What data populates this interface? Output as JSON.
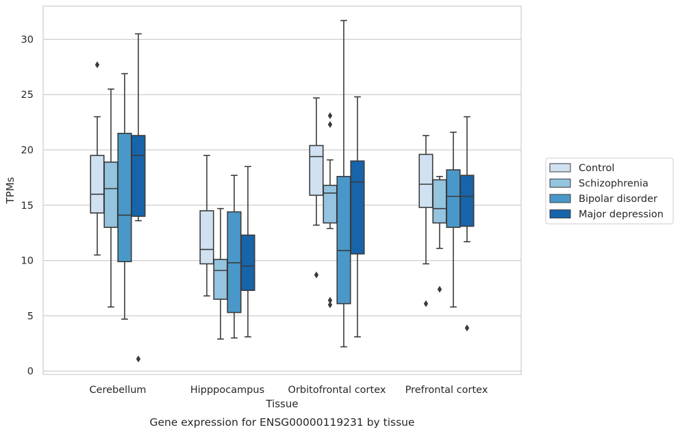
{
  "chart_data": {
    "type": "box",
    "caption": "Gene expression for ENSG00000119231 by tissue",
    "xlabel": "Tissue",
    "ylabel": "TPMs",
    "ylim": [
      -0.3,
      33
    ],
    "yticks": [
      0,
      5,
      10,
      15,
      20,
      25,
      30
    ],
    "grid": "horizontal",
    "legend_position": "right",
    "categories": [
      "Cerebellum",
      "Hipppocampus",
      "Orbitofrontal cortex",
      "Prefrontal cortex"
    ],
    "series": [
      {
        "name": "Control",
        "color": "#d0e1f2",
        "boxes": [
          {
            "whisker_low": 10.5,
            "q1": 14.3,
            "median": 16.0,
            "q3": 19.5,
            "whisker_high": 23.0,
            "outliers": [
              27.7
            ]
          },
          {
            "whisker_low": 6.8,
            "q1": 9.7,
            "median": 11.0,
            "q3": 14.5,
            "whisker_high": 19.5,
            "outliers": []
          },
          {
            "whisker_low": 13.2,
            "q1": 15.9,
            "median": 19.4,
            "q3": 20.4,
            "whisker_high": 24.7,
            "outliers": [
              8.7
            ]
          },
          {
            "whisker_low": 9.7,
            "q1": 14.8,
            "median": 16.9,
            "q3": 19.6,
            "whisker_high": 21.3,
            "outliers": [
              6.1
            ]
          }
        ]
      },
      {
        "name": "Schizophrenia",
        "color": "#94c4df",
        "boxes": [
          {
            "whisker_low": 5.8,
            "q1": 13.0,
            "median": 16.5,
            "q3": 18.9,
            "whisker_high": 25.5,
            "outliers": []
          },
          {
            "whisker_low": 2.9,
            "q1": 6.5,
            "median": 9.1,
            "q3": 10.1,
            "whisker_high": 14.7,
            "outliers": []
          },
          {
            "whisker_low": 12.9,
            "q1": 13.4,
            "median": 16.1,
            "q3": 16.8,
            "whisker_high": 19.1,
            "outliers": [
              23.1,
              22.3,
              6.4,
              6.0
            ]
          },
          {
            "whisker_low": 11.1,
            "q1": 13.4,
            "median": 14.7,
            "q3": 17.3,
            "whisker_high": 17.6,
            "outliers": [
              7.4
            ]
          }
        ]
      },
      {
        "name": "Bipolar disorder",
        "color": "#4a98c9",
        "boxes": [
          {
            "whisker_low": 4.7,
            "q1": 9.9,
            "median": 14.1,
            "q3": 21.5,
            "whisker_high": 26.9,
            "outliers": []
          },
          {
            "whisker_low": 3.0,
            "q1": 5.3,
            "median": 9.8,
            "q3": 14.4,
            "whisker_high": 17.7,
            "outliers": []
          },
          {
            "whisker_low": 2.2,
            "q1": 6.1,
            "median": 10.9,
            "q3": 17.6,
            "whisker_high": 31.7,
            "outliers": []
          },
          {
            "whisker_low": 5.8,
            "q1": 13.0,
            "median": 15.8,
            "q3": 18.2,
            "whisker_high": 21.6,
            "outliers": []
          }
        ]
      },
      {
        "name": "Major depression",
        "color": "#1764ab",
        "boxes": [
          {
            "whisker_low": 13.6,
            "q1": 14.0,
            "median": 19.5,
            "q3": 21.3,
            "whisker_high": 30.5,
            "outliers": [
              1.1
            ]
          },
          {
            "whisker_low": 3.1,
            "q1": 7.3,
            "median": 9.5,
            "q3": 12.3,
            "whisker_high": 18.5,
            "outliers": []
          },
          {
            "whisker_low": 3.1,
            "q1": 10.6,
            "median": 17.1,
            "q3": 19.0,
            "whisker_high": 24.8,
            "outliers": []
          },
          {
            "whisker_low": 11.7,
            "q1": 13.1,
            "median": 15.8,
            "q3": 17.7,
            "whisker_high": 23.0,
            "outliers": [
              3.9
            ]
          }
        ]
      }
    ]
  }
}
